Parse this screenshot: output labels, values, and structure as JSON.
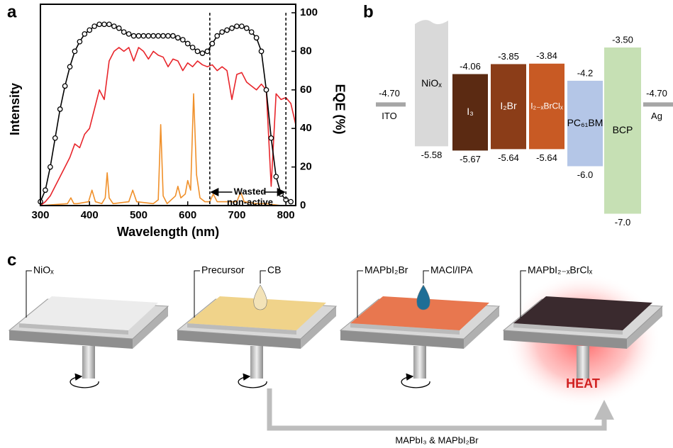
{
  "panel_labels": [
    "a",
    "b",
    "c"
  ],
  "chart_data": {
    "type": "line",
    "xlabel": "Wavelength (nm)",
    "ylabel": "Intensity",
    "y2label": "EQE (%)",
    "xlim": [
      300,
      820
    ],
    "xticks": [
      300,
      400,
      500,
      600,
      700,
      800
    ],
    "y2lim": [
      0,
      100
    ],
    "y2ticks": [
      0,
      20,
      40,
      60,
      80,
      100
    ],
    "vlines": [
      645,
      800
    ],
    "annotations": [
      "Wasted",
      "non-active"
    ],
    "series": [
      {
        "color": "#000000",
        "axis": "y2",
        "marker": "circle",
        "x": [
          300,
          310,
          320,
          330,
          340,
          350,
          360,
          370,
          380,
          390,
          400,
          410,
          420,
          430,
          440,
          450,
          460,
          470,
          480,
          490,
          500,
          510,
          520,
          530,
          540,
          550,
          560,
          570,
          580,
          590,
          600,
          610,
          620,
          630,
          640,
          650,
          660,
          670,
          680,
          690,
          700,
          710,
          720,
          730,
          740,
          750,
          760,
          770,
          780,
          790,
          800,
          810
        ],
        "values": [
          2,
          8,
          20,
          35,
          50,
          62,
          72,
          80,
          85,
          89,
          91,
          93,
          94,
          94,
          94,
          93,
          92,
          90,
          89,
          88,
          88,
          88,
          88,
          88,
          88,
          88,
          88,
          88,
          87,
          86,
          84,
          82,
          80,
          79,
          80,
          84,
          88,
          90,
          91,
          92,
          93,
          93,
          92,
          90,
          87,
          80,
          60,
          35,
          15,
          6,
          3,
          2
        ]
      },
      {
        "color": "#e8252b",
        "axis": "y2",
        "x": [
          300,
          310,
          320,
          330,
          340,
          350,
          360,
          370,
          380,
          390,
          400,
          410,
          420,
          430,
          440,
          450,
          460,
          470,
          480,
          490,
          500,
          510,
          520,
          530,
          540,
          550,
          560,
          570,
          580,
          590,
          600,
          610,
          620,
          630,
          640,
          650,
          660,
          670,
          680,
          690,
          700,
          710,
          720,
          730,
          740,
          750,
          760,
          770,
          780,
          790,
          800,
          810,
          820
        ],
        "values": [
          0,
          2,
          5,
          10,
          15,
          20,
          25,
          32,
          30,
          37,
          40,
          50,
          60,
          55,
          75,
          80,
          82,
          80,
          82,
          75,
          82,
          80,
          76,
          80,
          78,
          77,
          72,
          76,
          75,
          70,
          74,
          72,
          75,
          73,
          72,
          73,
          70,
          72,
          70,
          55,
          68,
          69,
          64,
          62,
          60,
          63,
          60,
          10,
          58,
          55,
          56,
          53,
          42
        ]
      },
      {
        "color": "#f0902a",
        "axis": "y2",
        "x": [
          300,
          355,
          362,
          368,
          375,
          398,
          405,
          412,
          425,
          432,
          436,
          440,
          448,
          480,
          488,
          496,
          530,
          540,
          545,
          550,
          558,
          575,
          580,
          586,
          595,
          600,
          606,
          612,
          618,
          625,
          635,
          645,
          652,
          660,
          700,
          708,
          715,
          740,
          760,
          790,
          820
        ],
        "values": [
          0,
          1,
          4,
          1,
          1,
          2,
          8,
          2,
          1,
          4,
          17,
          4,
          1,
          2,
          8,
          2,
          1,
          3,
          42,
          5,
          1,
          5,
          10,
          4,
          6,
          13,
          8,
          58,
          16,
          4,
          2,
          2,
          6,
          2,
          2,
          7,
          2,
          1,
          1,
          0,
          0
        ]
      }
    ]
  },
  "energy_diagram": {
    "layers": [
      {
        "label": "ITO",
        "level": "-4.70",
        "color": "#a6a6a6"
      },
      {
        "label": "NiOₓ",
        "bottom": "-5.58",
        "color": "#d9d9d9",
        "text_color": "#000000"
      },
      {
        "label": "I₃",
        "top": "-4.06",
        "bottom": "-5.67",
        "color": "#5b2a12",
        "text_color": "#ffffff"
      },
      {
        "label": "I₂Br",
        "top": "-3.85",
        "bottom": "-5.64",
        "color": "#8b3d18",
        "text_color": "#ffffff"
      },
      {
        "label": "I₂₋ₓBrClₓ",
        "top": "-3.84",
        "bottom": "-5.64",
        "color": "#c85a24",
        "text_color": "#ffffff"
      },
      {
        "label": "PC₆₁BM",
        "top": "-4.2",
        "bottom": "-6.0",
        "color": "#b4c6e7",
        "text_color": "#000000"
      },
      {
        "label": "BCP",
        "top": "-3.50",
        "bottom": "-7.0",
        "color": "#c6e0b4",
        "text_color": "#000000"
      },
      {
        "label": "Ag",
        "level": "-4.70",
        "color": "#a6a6a6"
      }
    ]
  },
  "process": {
    "steps": [
      {
        "film_color": "#ececec",
        "labels": [
          "NiOₓ"
        ]
      },
      {
        "film_color": "#f0d38a",
        "labels": [
          "Precursor",
          "CB"
        ],
        "drop_color": "#f3e3b8"
      },
      {
        "film_color": "#e8774f",
        "labels": [
          "MAPbI₂Br",
          "MACl/IPA"
        ],
        "drop_color": "#1e6e96"
      },
      {
        "film_color": "#3a2a2e",
        "labels": [
          "MAPbI₂₋ₓBrClₓ"
        ]
      }
    ],
    "heat": "HEAT",
    "arrow_label": "MAPbI₃ & MAPbI₂Br"
  }
}
